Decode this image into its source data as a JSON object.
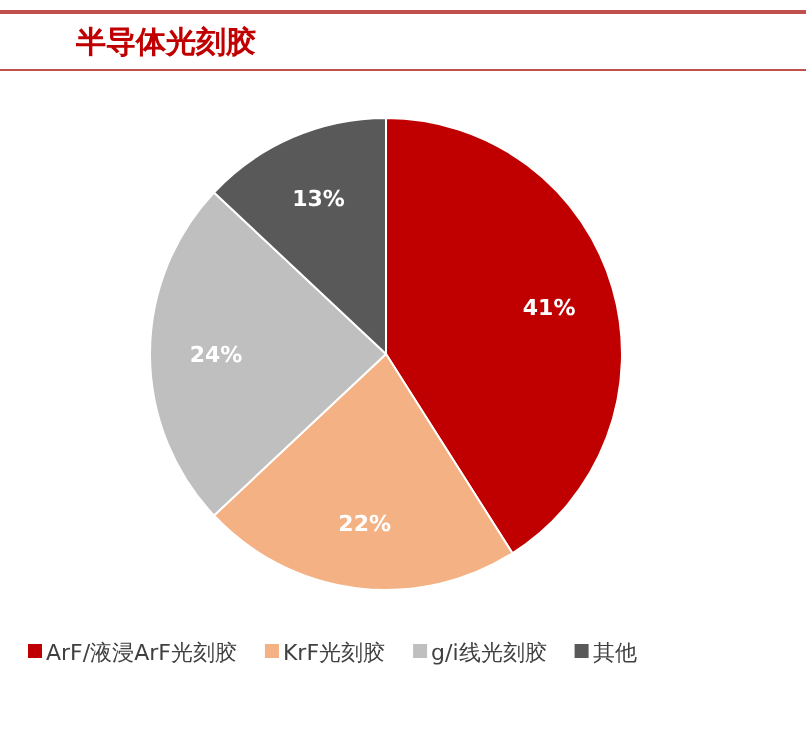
{
  "chart_data": {
    "type": "pie",
    "title": "半导体光刻胶",
    "categories": [
      "ArF/液浸ArF光刻胶",
      "KrF光刻胶",
      "g/i线光刻胶",
      "其他"
    ],
    "values": [
      41,
      22,
      24,
      13
    ],
    "value_labels": [
      "41%",
      "22%",
      "24%",
      "13%"
    ],
    "colors": [
      "#c00000",
      "#f4b183",
      "#bfbfbf",
      "#595959"
    ],
    "legend": "bottom"
  }
}
